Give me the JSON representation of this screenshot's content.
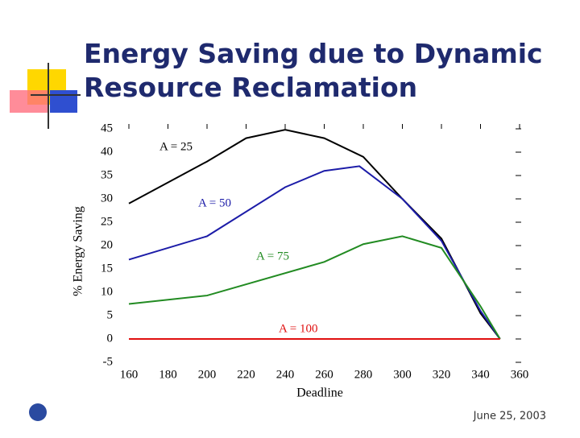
{
  "chart_data": {
    "type": "line",
    "title": "Energy Saving due to Dynamic Resource Reclamation",
    "x_label": "Deadline",
    "y_label": "% Energy Saving",
    "xlim": [
      160,
      360
    ],
    "xticks": [
      160,
      180,
      200,
      220,
      240,
      260,
      280,
      300,
      320,
      340,
      360
    ],
    "ylim": [
      -5,
      45
    ],
    "yticks": [
      -5,
      0,
      5,
      10,
      15,
      20,
      25,
      30,
      35,
      40,
      45
    ],
    "series": [
      {
        "name": "A = 25",
        "color": "#000000",
        "x": [
          160,
          200,
          220,
          240,
          260,
          280,
          300,
          320,
          340,
          350
        ],
        "values": [
          29,
          38,
          43,
          44.8,
          43,
          39,
          30,
          21.5,
          5.5,
          0
        ]
      },
      {
        "name": "A = 50",
        "color": "#1c1ca8",
        "x": [
          160,
          200,
          240,
          260,
          278,
          300,
          320,
          340,
          350
        ],
        "values": [
          17,
          22,
          32.5,
          36,
          37,
          30,
          21,
          6,
          0
        ]
      },
      {
        "name": "A = 75",
        "color": "#228b22",
        "x": [
          160,
          200,
          260,
          280,
          300,
          320,
          340,
          350
        ],
        "values": [
          7.5,
          9.3,
          16.5,
          20.3,
          22,
          19.5,
          7,
          0
        ]
      },
      {
        "name": "A = 100",
        "color": "#e01010",
        "x": [
          160,
          350
        ],
        "values": [
          0,
          0
        ]
      }
    ]
  },
  "footer": {
    "date": "June 25, 2003"
  }
}
